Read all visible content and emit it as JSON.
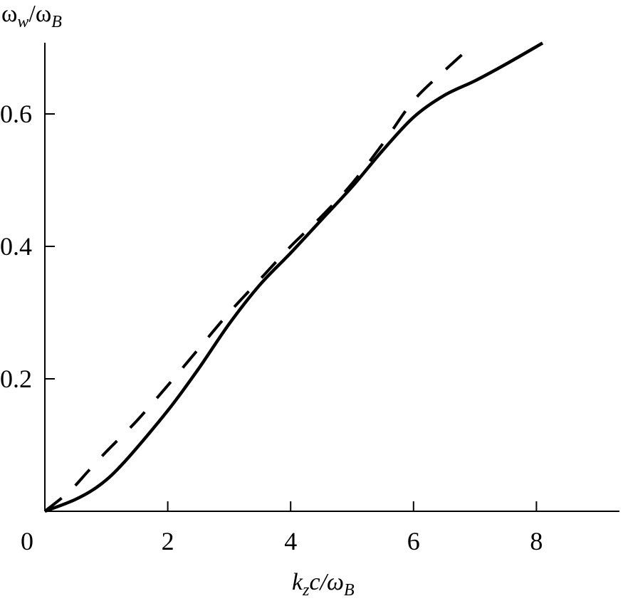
{
  "chart_data": {
    "type": "line",
    "xlabel": {
      "main": "k",
      "sub1": "z",
      "mid": "c/ω",
      "sub2": "B"
    },
    "ylabel": {
      "main": "ω",
      "sub1": "w",
      "mid": "/ω",
      "sub2": "B"
    },
    "xlim": [
      0,
      9.35
    ],
    "ylim": [
      0,
      0.707
    ],
    "x_ticks": [
      0,
      2,
      4,
      6,
      8
    ],
    "x_tick_labels": [
      "0",
      "2",
      "4",
      "6",
      "8"
    ],
    "y_ticks": [
      0.2,
      0.4,
      0.6
    ],
    "y_tick_labels": [
      "0.2",
      "0.4",
      "0.6"
    ],
    "grid": false,
    "series": [
      {
        "style": "solid",
        "color": "#000000",
        "x": [
          0,
          0.5,
          0.9,
          1.3,
          2.0,
          2.5,
          3.0,
          3.5,
          4.0,
          4.5,
          5.0,
          5.5,
          6.0,
          6.5,
          7.0,
          7.5,
          8.1
        ],
        "y": [
          0,
          0.018,
          0.04,
          0.075,
          0.152,
          0.215,
          0.283,
          0.342,
          0.39,
          0.44,
          0.49,
          0.545,
          0.595,
          0.628,
          0.65,
          0.675,
          0.707
        ]
      },
      {
        "style": "dashed",
        "color": "#000000",
        "x": [
          0,
          0.4,
          0.7,
          1.0,
          1.5,
          2.0,
          2.5,
          3.0,
          3.5,
          4.0,
          4.5,
          5.0,
          5.5,
          6.0,
          6.5,
          7.0
        ],
        "y": [
          0,
          0.03,
          0.06,
          0.09,
          0.137,
          0.19,
          0.245,
          0.3,
          0.35,
          0.4,
          0.445,
          0.495,
          0.555,
          0.62,
          0.665,
          0.707
        ]
      }
    ]
  }
}
